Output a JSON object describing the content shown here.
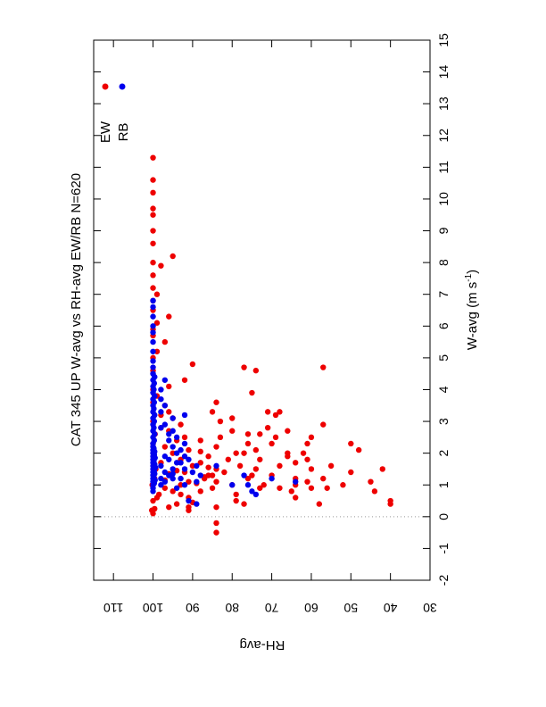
{
  "colors": {
    "ew": "#ee0000",
    "rb": "#0000ee",
    "axis": "#000000",
    "zero_line": "#999999"
  },
  "chart_data": {
    "type": "scatter",
    "orientation": "rotated-90-clockwise",
    "title_parts": [
      "CAT 345",
      "UP",
      "W-avg  vs  RH-avg",
      "EW/RB",
      "N=620"
    ],
    "xlabel": "W-avg (m s",
    "xlabel_exponent": "-1",
    "xlabel_close": ")",
    "ylabel": "RH-avg",
    "xlim": [
      -2,
      15
    ],
    "ylim": [
      30,
      115
    ],
    "x_ticks": [
      -2,
      -1,
      0,
      1,
      2,
      3,
      4,
      5,
      6,
      7,
      8,
      9,
      10,
      11,
      12,
      13,
      14,
      15
    ],
    "y_ticks": [
      30,
      40,
      50,
      60,
      70,
      80,
      90,
      100,
      110
    ],
    "zero_line_x": 0,
    "legend_position": "top-right",
    "series": [
      {
        "name": "EW",
        "points": [
          [
            0.1,
            100
          ],
          [
            0.2,
            100.3
          ],
          [
            0.25,
            99.6
          ],
          [
            0.3,
            96
          ],
          [
            0.4,
            94
          ],
          [
            0.5,
            100
          ],
          [
            0.6,
            99
          ],
          [
            0.7,
            98.5
          ],
          [
            0.8,
            95
          ],
          [
            0.9,
            97
          ],
          [
            1.0,
            100.2
          ],
          [
            1.0,
            93
          ],
          [
            1.05,
            89
          ],
          [
            1.1,
            91
          ],
          [
            1.15,
            97
          ],
          [
            1.2,
            99.6
          ],
          [
            1.25,
            87
          ],
          [
            1.3,
            85
          ],
          [
            1.35,
            96
          ],
          [
            1.4,
            92
          ],
          [
            1.45,
            94
          ],
          [
            1.5,
            99.3
          ],
          [
            1.55,
            86
          ],
          [
            1.6,
            90
          ],
          [
            1.7,
            98
          ],
          [
            1.8,
            93
          ],
          [
            1.9,
            99.7
          ],
          [
            2.0,
            95
          ],
          [
            2.05,
            88
          ],
          [
            2.1,
            91
          ],
          [
            2.2,
            97
          ],
          [
            2.3,
            100
          ],
          [
            2.4,
            94
          ],
          [
            2.5,
            92
          ],
          [
            2.6,
            99.5
          ],
          [
            2.7,
            96
          ],
          [
            2.8,
            98
          ],
          [
            2.9,
            93
          ],
          [
            3.0,
            100
          ],
          [
            3.1,
            95
          ],
          [
            3.2,
            98
          ],
          [
            3.3,
            96
          ],
          [
            3.5,
            97
          ],
          [
            3.6,
            100
          ],
          [
            3.8,
            99
          ],
          [
            4.0,
            100
          ],
          [
            4.1,
            96
          ],
          [
            4.3,
            92
          ],
          [
            4.6,
            100
          ],
          [
            4.8,
            90
          ],
          [
            5.0,
            100
          ],
          [
            5.2,
            99
          ],
          [
            5.5,
            97
          ],
          [
            5.7,
            100
          ],
          [
            5.9,
            100
          ],
          [
            6.1,
            99
          ],
          [
            6.3,
            96
          ],
          [
            6.5,
            100
          ],
          [
            6.8,
            100
          ],
          [
            7.0,
            99
          ],
          [
            7.2,
            100
          ],
          [
            7.6,
            100
          ],
          [
            7.9,
            98
          ],
          [
            8.0,
            100
          ],
          [
            8.2,
            95
          ],
          [
            8.6,
            100
          ],
          [
            9.0,
            100
          ],
          [
            9.5,
            100
          ],
          [
            9.7,
            100
          ],
          [
            10.2,
            100
          ],
          [
            10.6,
            100
          ],
          [
            11.3,
            100
          ],
          [
            0.2,
            91
          ],
          [
            0.3,
            91
          ],
          [
            0.45,
            90
          ],
          [
            0.7,
            93
          ],
          [
            0.9,
            85
          ],
          [
            1.0,
            80
          ],
          [
            1.1,
            84
          ],
          [
            1.2,
            76
          ],
          [
            1.4,
            82
          ],
          [
            1.5,
            84
          ],
          [
            1.6,
            78
          ],
          [
            1.8,
            81
          ],
          [
            2.0,
            79
          ],
          [
            2.2,
            84
          ],
          [
            2.5,
            83
          ],
          [
            2.7,
            80
          ],
          [
            3.0,
            83
          ],
          [
            3.3,
            85
          ],
          [
            3.6,
            84
          ],
          [
            1.2,
            87
          ],
          [
            1.3,
            75
          ],
          [
            1.0,
            72
          ],
          [
            0.9,
            73
          ],
          [
            1.5,
            74
          ],
          [
            1.8,
            73
          ],
          [
            2.0,
            77
          ],
          [
            2.1,
            74
          ],
          [
            2.3,
            76
          ],
          [
            2.6,
            73
          ],
          [
            2.8,
            71
          ],
          [
            3.2,
            69
          ],
          [
            3.3,
            71
          ],
          [
            4.6,
            74
          ],
          [
            4.7,
            77
          ],
          [
            3.9,
            75
          ],
          [
            3.3,
            68
          ],
          [
            2.5,
            69
          ],
          [
            2.3,
            70
          ],
          [
            1.6,
            68
          ],
          [
            1.9,
            66
          ],
          [
            2.7,
            66
          ],
          [
            1.7,
            64
          ],
          [
            1.2,
            64
          ],
          [
            1.0,
            64
          ],
          [
            0.8,
            65
          ],
          [
            0.6,
            64
          ],
          [
            1.3,
            70
          ],
          [
            0.9,
            68
          ],
          [
            1.5,
            60
          ],
          [
            1.8,
            61
          ],
          [
            2.0,
            62
          ],
          [
            2.3,
            61
          ],
          [
            2.5,
            60
          ],
          [
            2.9,
            57
          ],
          [
            4.7,
            57
          ],
          [
            1.2,
            57
          ],
          [
            0.9,
            56
          ],
          [
            0.4,
            58
          ],
          [
            0.9,
            60
          ],
          [
            1.0,
            52
          ],
          [
            1.4,
            50
          ],
          [
            2.1,
            48
          ],
          [
            2.3,
            50
          ],
          [
            1.5,
            42
          ],
          [
            1.1,
            45
          ],
          [
            0.8,
            44
          ],
          [
            0.4,
            40
          ],
          [
            0.5,
            40
          ],
          [
            -0.2,
            84
          ],
          [
            -0.5,
            84
          ],
          [
            1.1,
            61
          ],
          [
            1.6,
            55
          ],
          [
            2.0,
            66
          ],
          [
            0.7,
            79
          ],
          [
            0.5,
            79
          ],
          [
            0.3,
            84
          ],
          [
            0.4,
            77
          ],
          [
            1.7,
            88
          ],
          [
            1.9,
            86
          ],
          [
            2.4,
            88
          ],
          [
            3.1,
            80
          ],
          [
            2.6,
            76
          ],
          [
            1.3,
            86
          ],
          [
            0.6,
            91
          ],
          [
            0.8,
            88
          ]
        ]
      },
      {
        "name": "RB",
        "points": [
          [
            0.8,
            100
          ],
          [
            0.9,
            100
          ],
          [
            1.0,
            100
          ],
          [
            1.05,
            99.7
          ],
          [
            1.1,
            100
          ],
          [
            1.15,
            99.5
          ],
          [
            1.2,
            100
          ],
          [
            1.25,
            99.8
          ],
          [
            1.3,
            100
          ],
          [
            1.35,
            99.6
          ],
          [
            1.4,
            100
          ],
          [
            1.45,
            99.7
          ],
          [
            1.5,
            100
          ],
          [
            1.55,
            99.4
          ],
          [
            1.6,
            100
          ],
          [
            1.65,
            99.6
          ],
          [
            1.7,
            100
          ],
          [
            1.75,
            99.8
          ],
          [
            1.8,
            100
          ],
          [
            1.85,
            99.5
          ],
          [
            1.9,
            100
          ],
          [
            1.95,
            99.7
          ],
          [
            2.0,
            100
          ],
          [
            2.05,
            99.6
          ],
          [
            2.1,
            100
          ],
          [
            2.15,
            99.8
          ],
          [
            2.2,
            100
          ],
          [
            2.3,
            100
          ],
          [
            2.4,
            99.7
          ],
          [
            2.5,
            100
          ],
          [
            2.6,
            99.6
          ],
          [
            2.7,
            100
          ],
          [
            2.8,
            99.8
          ],
          [
            2.9,
            100
          ],
          [
            3.0,
            99.7
          ],
          [
            3.1,
            100
          ],
          [
            3.2,
            99.6
          ],
          [
            3.3,
            100
          ],
          [
            3.4,
            99.8
          ],
          [
            3.5,
            100
          ],
          [
            3.6,
            99.7
          ],
          [
            3.7,
            100
          ],
          [
            3.8,
            99.6
          ],
          [
            3.9,
            100
          ],
          [
            4.0,
            99.8
          ],
          [
            4.1,
            100
          ],
          [
            4.2,
            99.7
          ],
          [
            4.3,
            100
          ],
          [
            4.4,
            99.6
          ],
          [
            4.5,
            100
          ],
          [
            4.7,
            100
          ],
          [
            4.9,
            100
          ],
          [
            5.2,
            100
          ],
          [
            5.5,
            100
          ],
          [
            5.8,
            100
          ],
          [
            6.0,
            100
          ],
          [
            6.3,
            100
          ],
          [
            6.6,
            100
          ],
          [
            6.8,
            100
          ],
          [
            1.0,
            98
          ],
          [
            1.1,
            97
          ],
          [
            1.2,
            98
          ],
          [
            1.3,
            96
          ],
          [
            1.4,
            97
          ],
          [
            1.5,
            95
          ],
          [
            1.6,
            98
          ],
          [
            1.7,
            94
          ],
          [
            1.8,
            96
          ],
          [
            1.9,
            92
          ],
          [
            2.0,
            94
          ],
          [
            2.2,
            95
          ],
          [
            2.4,
            96
          ],
          [
            2.5,
            94
          ],
          [
            2.7,
            95
          ],
          [
            2.9,
            97
          ],
          [
            3.1,
            95
          ],
          [
            3.3,
            98
          ],
          [
            3.5,
            97
          ],
          [
            3.7,
            98
          ],
          [
            4.0,
            98
          ],
          [
            4.3,
            97
          ],
          [
            1.2,
            93
          ],
          [
            1.4,
            90
          ],
          [
            1.5,
            92
          ],
          [
            1.6,
            89
          ],
          [
            1.7,
            93
          ],
          [
            1.8,
            91
          ],
          [
            2.1,
            93
          ],
          [
            2.3,
            92
          ],
          [
            1.1,
            89
          ],
          [
            1.3,
            88
          ],
          [
            0.9,
            94
          ],
          [
            0.4,
            89
          ],
          [
            0.5,
            91
          ],
          [
            1.0,
            80
          ],
          [
            1.0,
            76
          ],
          [
            1.3,
            77
          ],
          [
            0.8,
            75
          ],
          [
            0.7,
            74
          ],
          [
            1.2,
            70
          ],
          [
            1.1,
            64
          ],
          [
            1.6,
            84
          ],
          [
            1.9,
            97
          ],
          [
            2.6,
            96
          ],
          [
            3.2,
            92
          ],
          [
            1.0,
            92
          ],
          [
            1.35,
            95
          ],
          [
            2.8,
            98
          ],
          [
            1.2,
            95
          ]
        ]
      }
    ]
  }
}
